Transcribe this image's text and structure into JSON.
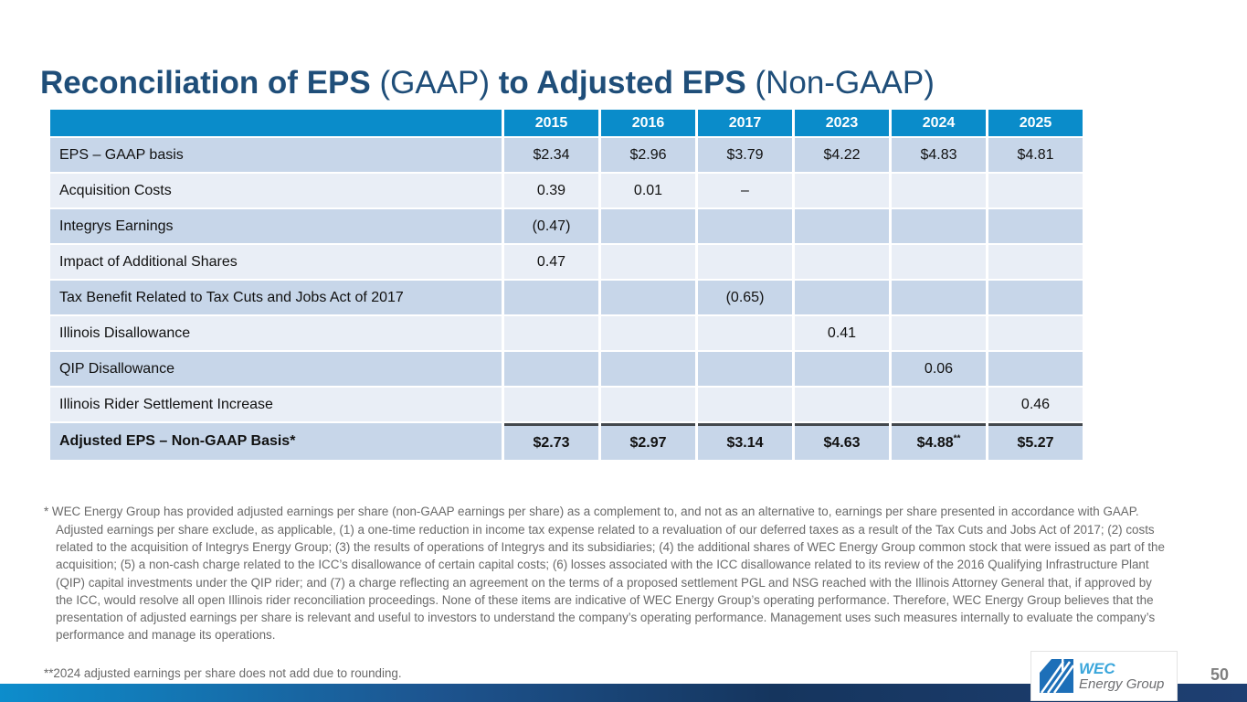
{
  "slide": {
    "title": {
      "segments": [
        {
          "text": "Reconciliation of EPS",
          "bold": true
        },
        {
          "text": " (GAAP) ",
          "bold": false
        },
        {
          "text": "to Adjusted EPS",
          "bold": true
        },
        {
          "text": " (Non-GAAP)",
          "bold": false
        }
      ]
    },
    "page_number": "50"
  },
  "table": {
    "columns": [
      "",
      "2015",
      "2016",
      "2017",
      "2023",
      "2024",
      "2025"
    ],
    "rows": [
      {
        "label": "EPS – GAAP basis",
        "values": [
          "$2.34",
          "$2.96",
          "$3.79",
          "$4.22",
          "$4.83",
          "$4.81"
        ],
        "total": false
      },
      {
        "label": "Acquisition Costs",
        "values": [
          "0.39",
          "0.01",
          "–",
          "",
          "",
          ""
        ],
        "total": false
      },
      {
        "label": "Integrys Earnings",
        "values": [
          "(0.47)",
          "",
          "",
          "",
          "",
          ""
        ],
        "total": false
      },
      {
        "label": "Impact of Additional Shares",
        "values": [
          "0.47",
          "",
          "",
          "",
          "",
          ""
        ],
        "total": false
      },
      {
        "label": "Tax Benefit Related to Tax Cuts and Jobs Act of 2017",
        "values": [
          "",
          "",
          "(0.65)",
          "",
          "",
          ""
        ],
        "total": false
      },
      {
        "label": "Illinois Disallowance",
        "values": [
          "",
          "",
          "",
          "0.41",
          "",
          ""
        ],
        "total": false
      },
      {
        "label": "QIP Disallowance",
        "values": [
          "",
          "",
          "",
          "",
          "0.06",
          ""
        ],
        "total": false
      },
      {
        "label": "Illinois Rider Settlement Increase",
        "values": [
          "",
          "",
          "",
          "",
          "",
          "0.46"
        ],
        "total": false
      },
      {
        "label": "Adjusted EPS – Non-GAAP Basis*",
        "values": [
          "$2.73",
          "$2.97",
          "$3.14",
          "$4.63",
          "$4.88**",
          "$5.27"
        ],
        "total": true
      }
    ]
  },
  "footnotes": {
    "primary": "* WEC Energy Group has provided adjusted earnings per share (non-GAAP earnings per share) as a complement to, and not as an alternative to, earnings per share presented in accordance with GAAP. Adjusted earnings per share exclude, as applicable, (1) a one-time reduction in income tax expense related to a revaluation of our deferred taxes as a result of the Tax Cuts and Jobs Act of 2017; (2) costs related to the acquisition of Integrys Energy Group; (3) the results of operations of Integrys and its subsidiaries; (4) the additional shares of WEC Energy Group common stock that were issued as part of the acquisition; (5) a non-cash charge related to the ICC’s disallowance of certain capital costs; (6) losses associated with the ICC disallowance related to its review of the 2016 Qualifying Infrastructure Plant (QIP) capital investments under the QIP rider; and (7) a charge reflecting an agreement on the terms of a proposed settlement PGL and NSG reached with the Illinois Attorney General that, if approved by the ICC, would resolve all open Illinois rider reconciliation proceedings. None of these items are indicative of WEC Energy Group’s operating performance. Therefore, WEC Energy Group believes that the presentation of adjusted earnings per share is relevant and useful to investors to understand the company’s operating performance. Management uses such measures internally to evaluate the company’s performance and manage its operations.",
    "secondary": "**2024 adjusted earnings per share does not add due to rounding."
  },
  "logo": {
    "brand_top": "WEC",
    "brand_bottom": "Energy Group"
  },
  "colors": {
    "header_blue": "#0a8cca",
    "row_dark": "#c7d6e9",
    "row_light": "#e9eef6",
    "title_navy": "#1f4e79",
    "footnote_gray": "#696969",
    "total_rule": "#43484d",
    "bar_gradient_left": "#0d8dcc",
    "bar_gradient_right": "#1e3f72",
    "logo_square_blue": "#1d6fb8",
    "logo_text_blue": "#3aa6db",
    "logo_text_gray": "#6d6e71",
    "page_number_gray": "#7f7f7f"
  }
}
